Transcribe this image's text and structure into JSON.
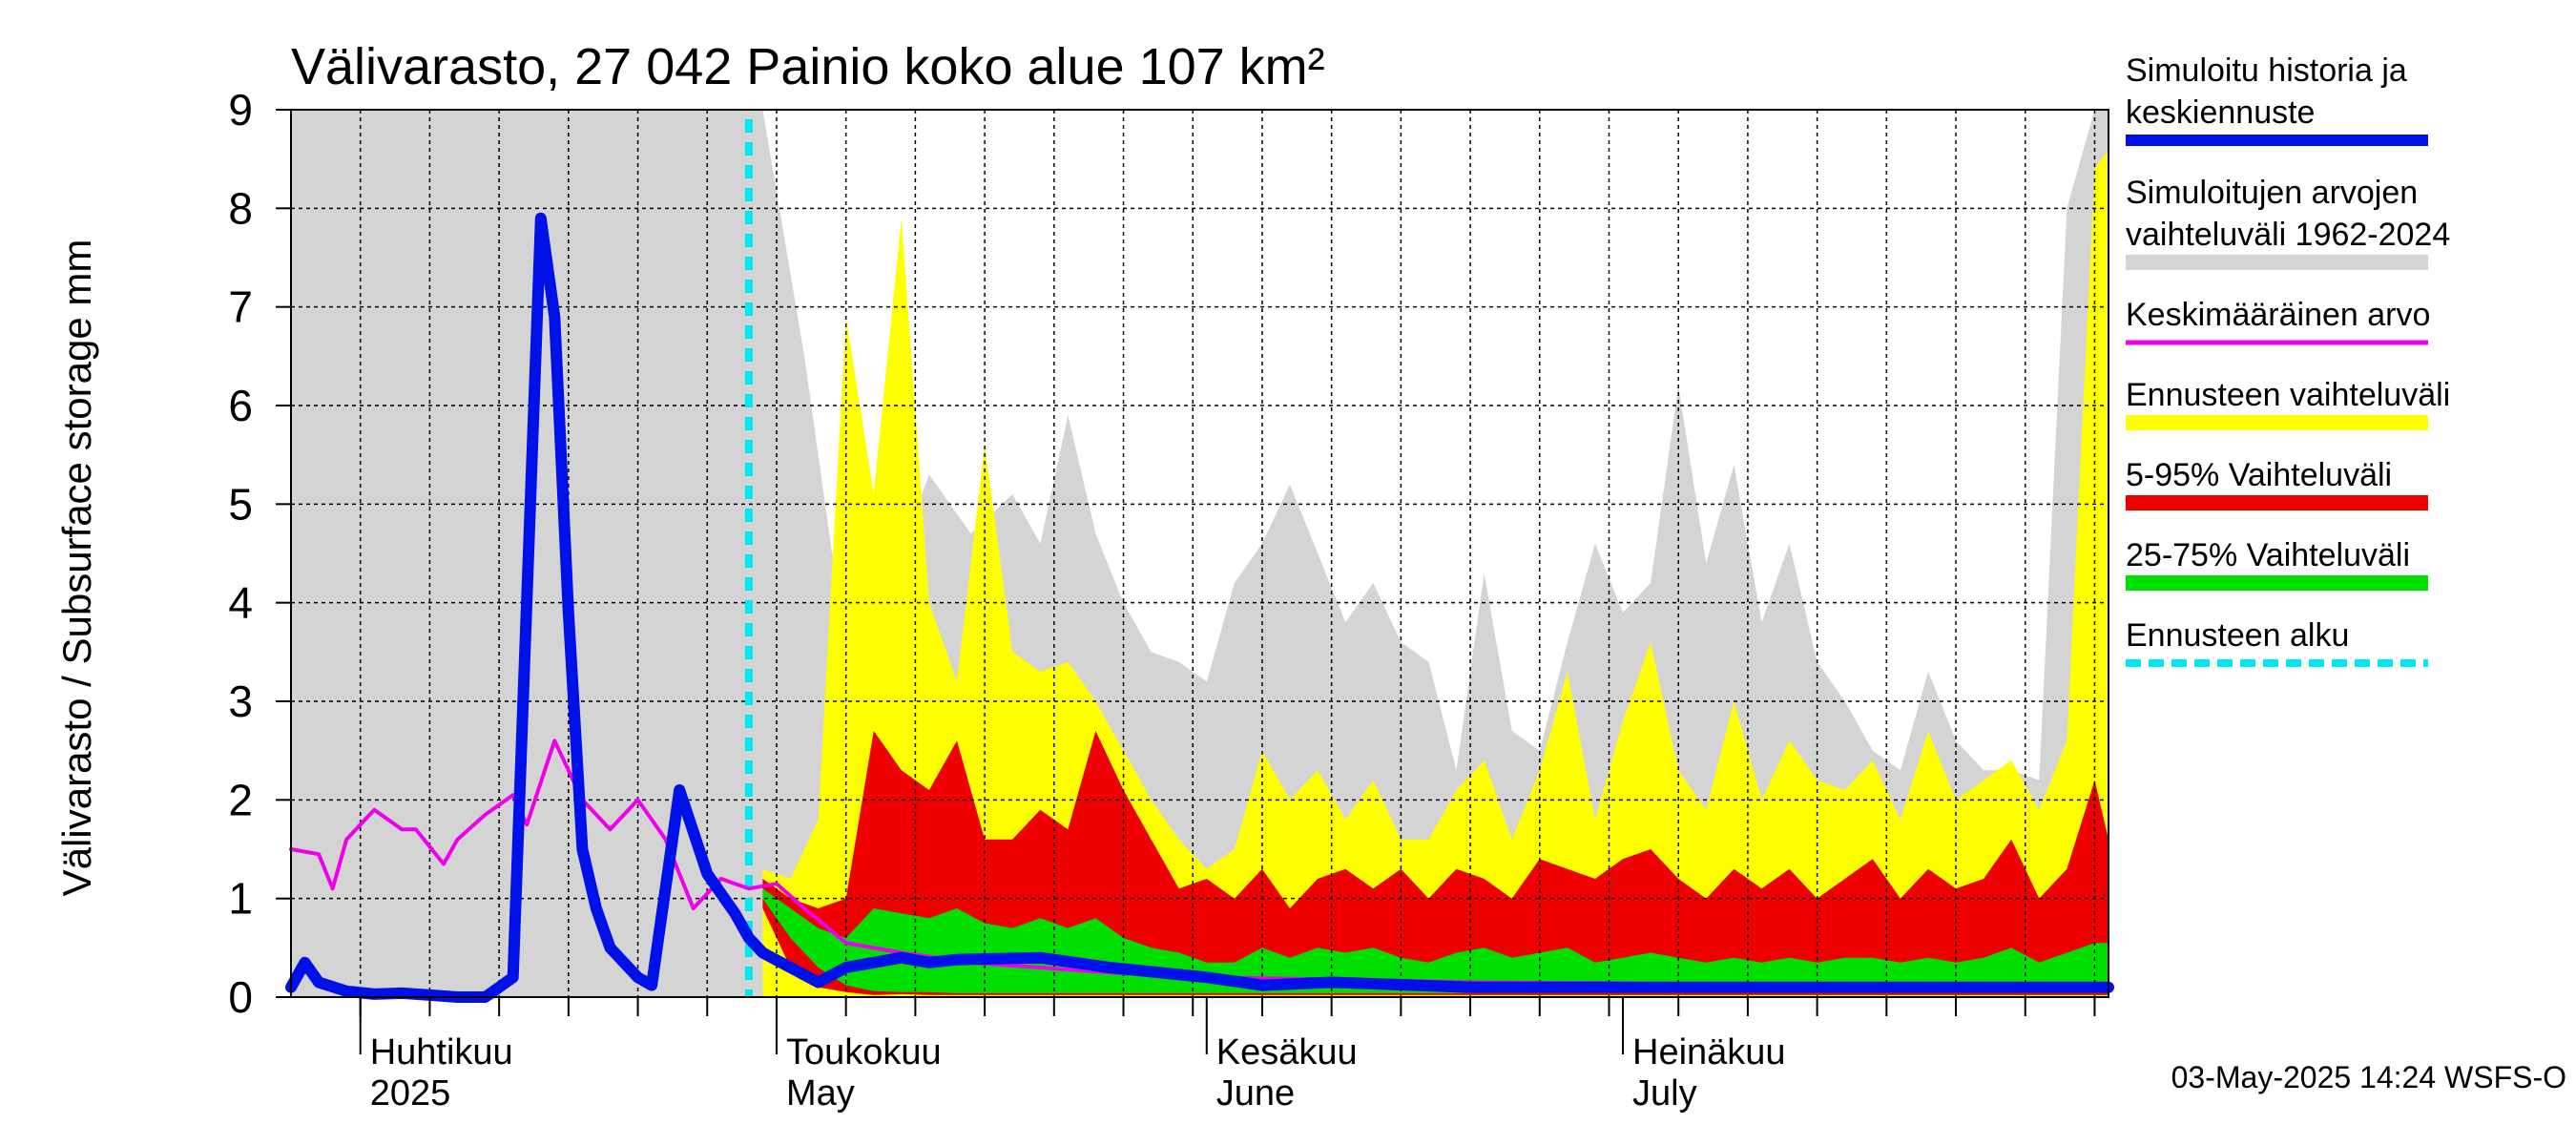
{
  "chart_data": {
    "type": "area",
    "title": "Välivarasto, 27 042 Painio koko alue 107 km²",
    "ylabel": "Välivarasto / Subsurface storage  mm",
    "ylim": [
      0,
      9
    ],
    "yticks": [
      0,
      1,
      2,
      3,
      4,
      5,
      6,
      7,
      8,
      9
    ],
    "xlim": [
      "2025-03-27",
      "2025-08-05"
    ],
    "grid": true,
    "legend_position": "right",
    "month_labels": [
      {
        "line1": "Huhtikuu",
        "line2": "2025",
        "date": "2025-04-01"
      },
      {
        "line1": "Toukokuu",
        "line2": "May",
        "date": "2025-05-01"
      },
      {
        "line1": "Kesäkuu",
        "line2": "June",
        "date": "2025-06-01"
      },
      {
        "line1": "Heinäkuu",
        "line2": "July",
        "date": "2025-07-01"
      }
    ],
    "forecast_start": "2025-04-29",
    "timestamp": "03-May-2025 14:24 WSFS-O",
    "legend": [
      {
        "label_lines": [
          "Simuloitu historia ja",
          "keskiennuste"
        ],
        "color": "#0010e8",
        "style": "thick"
      },
      {
        "label_lines": [
          "Simuloitujen arvojen",
          "vaihteluväli 1962-2024"
        ],
        "color": "#d4d4d4",
        "style": "band"
      },
      {
        "label_lines": [
          "Keskimääräinen arvo"
        ],
        "color": "#ee00ee",
        "style": "thin"
      },
      {
        "label_lines": [
          "Ennusteen vaihteluväli"
        ],
        "color": "#ffff00",
        "style": "band"
      },
      {
        "label_lines": [
          "5-95% Vaihteluväli"
        ],
        "color": "#ee0000",
        "style": "band"
      },
      {
        "label_lines": [
          "25-75% Vaihteluväli"
        ],
        "color": "#00e000",
        "style": "band"
      },
      {
        "label_lines": [
          "Ennusteen alku"
        ],
        "color": "#00e8f0",
        "style": "dashed"
      }
    ],
    "series": [
      {
        "name": "Simuloitujen arvojen vaihteluväli 1962-2024",
        "color": "#d4d4d4",
        "x": [
          "2025-03-27",
          "2025-04-30",
          "2025-05-03",
          "2025-05-05",
          "2025-05-08",
          "2025-05-12",
          "2025-05-15",
          "2025-05-18",
          "2025-05-20",
          "2025-05-22",
          "2025-05-24",
          "2025-05-26",
          "2025-05-28",
          "2025-05-30",
          "2025-06-01",
          "2025-06-03",
          "2025-06-05",
          "2025-06-07",
          "2025-06-09",
          "2025-06-11",
          "2025-06-13",
          "2025-06-15",
          "2025-06-17",
          "2025-06-19",
          "2025-06-21",
          "2025-06-23",
          "2025-06-25",
          "2025-06-27",
          "2025-06-29",
          "2025-07-01",
          "2025-07-03",
          "2025-07-05",
          "2025-07-07",
          "2025-07-09",
          "2025-07-11",
          "2025-07-13",
          "2025-07-15",
          "2025-07-17",
          "2025-07-19",
          "2025-07-21",
          "2025-07-23",
          "2025-07-25",
          "2025-07-27",
          "2025-07-29",
          "2025-07-31",
          "2025-08-02",
          "2025-08-04",
          "2025-08-05"
        ],
        "lower": [
          0,
          0,
          0,
          0,
          0,
          0,
          0,
          0,
          0,
          0,
          0,
          0,
          0,
          0,
          0,
          0,
          0,
          0,
          0,
          0,
          0,
          0,
          0,
          0,
          0,
          0,
          0,
          0,
          0,
          0,
          0,
          0,
          0,
          0,
          0,
          0,
          0,
          0,
          0,
          0,
          0,
          0,
          0,
          0,
          0,
          0,
          0,
          0
        ],
        "upper": [
          9,
          9,
          6.5,
          4.5,
          3.8,
          5.3,
          4.7,
          5.1,
          4.6,
          5.9,
          4.7,
          4.0,
          3.5,
          3.4,
          3.2,
          4.2,
          4.6,
          5.2,
          4.5,
          3.8,
          4.2,
          3.6,
          3.4,
          2.3,
          4.3,
          2.7,
          2.5,
          3.6,
          4.6,
          3.9,
          4.2,
          6.2,
          4.4,
          5.4,
          3.8,
          4.6,
          3.4,
          3.0,
          2.5,
          2.3,
          3.3,
          2.6,
          2.3,
          2.3,
          2.2,
          8.0,
          9,
          9
        ]
      },
      {
        "name": "Ennusteen vaihteluväli",
        "color": "#ffff00",
        "x": [
          "2025-04-30",
          "2025-05-02",
          "2025-05-04",
          "2025-05-06",
          "2025-05-08",
          "2025-05-10",
          "2025-05-12",
          "2025-05-14",
          "2025-05-16",
          "2025-05-18",
          "2025-05-20",
          "2025-05-22",
          "2025-05-24",
          "2025-05-26",
          "2025-05-28",
          "2025-05-30",
          "2025-06-01",
          "2025-06-03",
          "2025-06-05",
          "2025-06-07",
          "2025-06-09",
          "2025-06-11",
          "2025-06-13",
          "2025-06-15",
          "2025-06-17",
          "2025-06-19",
          "2025-06-21",
          "2025-06-23",
          "2025-06-25",
          "2025-06-27",
          "2025-06-29",
          "2025-07-01",
          "2025-07-03",
          "2025-07-05",
          "2025-07-07",
          "2025-07-09",
          "2025-07-11",
          "2025-07-13",
          "2025-07-15",
          "2025-07-17",
          "2025-07-19",
          "2025-07-21",
          "2025-07-23",
          "2025-07-25",
          "2025-07-27",
          "2025-07-29",
          "2025-07-31",
          "2025-08-02",
          "2025-08-04",
          "2025-08-05"
        ],
        "lower": [
          0,
          0,
          0,
          0,
          0,
          0,
          0,
          0,
          0,
          0,
          0,
          0,
          0,
          0,
          0,
          0,
          0,
          0,
          0,
          0,
          0,
          0,
          0,
          0,
          0,
          0,
          0,
          0,
          0,
          0,
          0,
          0,
          0,
          0,
          0,
          0,
          0,
          0,
          0,
          0,
          0,
          0,
          0,
          0,
          0,
          0,
          0,
          0,
          0,
          0
        ],
        "upper": [
          1.3,
          1.2,
          1.8,
          6.9,
          5.1,
          7.9,
          4.0,
          3.2,
          5.6,
          3.5,
          3.3,
          3.4,
          3.0,
          2.5,
          2.0,
          1.6,
          1.3,
          1.5,
          2.5,
          2.0,
          2.3,
          1.8,
          2.2,
          1.6,
          1.6,
          2.1,
          2.4,
          1.6,
          2.3,
          3.3,
          1.8,
          2.8,
          3.6,
          2.3,
          1.9,
          3.0,
          2.0,
          2.6,
          2.2,
          2.1,
          2.4,
          1.8,
          2.7,
          2.0,
          2.2,
          2.4,
          1.9,
          2.6,
          8.4,
          8.6
        ]
      },
      {
        "name": "5-95% Vaihteluväli",
        "color": "#ee0000",
        "x": [
          "2025-04-30",
          "2025-05-02",
          "2025-05-04",
          "2025-05-06",
          "2025-05-08",
          "2025-05-10",
          "2025-05-12",
          "2025-05-14",
          "2025-05-16",
          "2025-05-18",
          "2025-05-20",
          "2025-05-22",
          "2025-05-24",
          "2025-05-26",
          "2025-05-28",
          "2025-05-30",
          "2025-06-01",
          "2025-06-03",
          "2025-06-05",
          "2025-06-07",
          "2025-06-09",
          "2025-06-11",
          "2025-06-13",
          "2025-06-15",
          "2025-06-17",
          "2025-06-19",
          "2025-06-21",
          "2025-06-23",
          "2025-06-25",
          "2025-06-27",
          "2025-06-29",
          "2025-07-01",
          "2025-07-03",
          "2025-07-05",
          "2025-07-07",
          "2025-07-09",
          "2025-07-11",
          "2025-07-13",
          "2025-07-15",
          "2025-07-17",
          "2025-07-19",
          "2025-07-21",
          "2025-07-23",
          "2025-07-25",
          "2025-07-27",
          "2025-07-29",
          "2025-07-31",
          "2025-08-02",
          "2025-08-04",
          "2025-08-05"
        ],
        "lower": [
          0.9,
          0.3,
          0.1,
          0.05,
          0.02,
          0.03,
          0.02,
          0.02,
          0.02,
          0.02,
          0.02,
          0.02,
          0.02,
          0.02,
          0.02,
          0.02,
          0.02,
          0.02,
          0.02,
          0.02,
          0.02,
          0.02,
          0.02,
          0.02,
          0.02,
          0.02,
          0.02,
          0.02,
          0.02,
          0.02,
          0.02,
          0.02,
          0.02,
          0.02,
          0.02,
          0.02,
          0.02,
          0.02,
          0.02,
          0.02,
          0.02,
          0.02,
          0.02,
          0.02,
          0.02,
          0.02,
          0.02,
          0.02,
          0.02,
          0.02
        ],
        "upper": [
          1.2,
          1.0,
          0.9,
          1.0,
          2.7,
          2.3,
          2.1,
          2.6,
          1.6,
          1.6,
          1.9,
          1.7,
          2.7,
          2.1,
          1.6,
          1.1,
          1.2,
          1.0,
          1.3,
          0.9,
          1.2,
          1.3,
          1.1,
          1.3,
          1.0,
          1.3,
          1.2,
          1.0,
          1.4,
          1.3,
          1.2,
          1.4,
          1.5,
          1.2,
          1.0,
          1.3,
          1.1,
          1.3,
          1.0,
          1.2,
          1.4,
          1.0,
          1.3,
          1.1,
          1.2,
          1.6,
          1.0,
          1.3,
          2.2,
          1.6
        ]
      },
      {
        "name": "25-75% Vaihteluväli",
        "color": "#00e000",
        "x": [
          "2025-04-30",
          "2025-05-02",
          "2025-05-04",
          "2025-05-06",
          "2025-05-08",
          "2025-05-10",
          "2025-05-12",
          "2025-05-14",
          "2025-05-16",
          "2025-05-18",
          "2025-05-20",
          "2025-05-22",
          "2025-05-24",
          "2025-05-26",
          "2025-05-28",
          "2025-05-30",
          "2025-06-01",
          "2025-06-03",
          "2025-06-05",
          "2025-06-07",
          "2025-06-09",
          "2025-06-11",
          "2025-06-13",
          "2025-06-15",
          "2025-06-17",
          "2025-06-19",
          "2025-06-21",
          "2025-06-23",
          "2025-06-25",
          "2025-06-27",
          "2025-06-29",
          "2025-07-01",
          "2025-07-03",
          "2025-07-05",
          "2025-07-07",
          "2025-07-09",
          "2025-07-11",
          "2025-07-13",
          "2025-07-15",
          "2025-07-17",
          "2025-07-19",
          "2025-07-21",
          "2025-07-23",
          "2025-07-25",
          "2025-07-27",
          "2025-07-29",
          "2025-07-31",
          "2025-08-02",
          "2025-08-04",
          "2025-08-05"
        ],
        "lower": [
          1.0,
          0.6,
          0.3,
          0.12,
          0.06,
          0.05,
          0.05,
          0.04,
          0.04,
          0.04,
          0.04,
          0.04,
          0.04,
          0.04,
          0.04,
          0.04,
          0.04,
          0.04,
          0.04,
          0.04,
          0.04,
          0.04,
          0.04,
          0.04,
          0.04,
          0.04,
          0.04,
          0.04,
          0.04,
          0.04,
          0.04,
          0.04,
          0.04,
          0.04,
          0.04,
          0.04,
          0.04,
          0.04,
          0.04,
          0.04,
          0.04,
          0.04,
          0.04,
          0.04,
          0.04,
          0.04,
          0.04,
          0.04,
          0.04,
          0.04
        ],
        "upper": [
          1.1,
          0.9,
          0.7,
          0.6,
          0.9,
          0.85,
          0.8,
          0.9,
          0.75,
          0.7,
          0.8,
          0.7,
          0.8,
          0.6,
          0.5,
          0.45,
          0.35,
          0.35,
          0.5,
          0.4,
          0.5,
          0.45,
          0.5,
          0.4,
          0.35,
          0.45,
          0.5,
          0.4,
          0.45,
          0.5,
          0.35,
          0.4,
          0.45,
          0.4,
          0.35,
          0.4,
          0.35,
          0.4,
          0.35,
          0.4,
          0.4,
          0.35,
          0.4,
          0.35,
          0.4,
          0.5,
          0.35,
          0.45,
          0.55,
          0.55
        ]
      },
      {
        "name": "Keskimääräinen arvo",
        "color": "#ee00ee",
        "x": [
          "2025-03-27",
          "2025-03-29",
          "2025-03-30",
          "2025-03-31",
          "2025-04-02",
          "2025-04-04",
          "2025-04-05",
          "2025-04-07",
          "2025-04-08",
          "2025-04-10",
          "2025-04-12",
          "2025-04-13",
          "2025-04-15",
          "2025-04-17",
          "2025-04-19",
          "2025-04-21",
          "2025-04-22",
          "2025-04-23",
          "2025-04-25",
          "2025-04-27",
          "2025-04-29",
          "2025-05-01",
          "2025-05-03",
          "2025-05-06",
          "2025-05-10",
          "2025-05-15",
          "2025-05-20",
          "2025-05-25",
          "2025-06-01",
          "2025-06-10",
          "2025-06-20",
          "2025-07-01",
          "2025-07-10",
          "2025-07-20",
          "2025-08-05"
        ],
        "values": [
          1.5,
          1.45,
          1.1,
          1.6,
          1.9,
          1.7,
          1.7,
          1.35,
          1.6,
          1.85,
          2.05,
          1.75,
          2.6,
          2.0,
          1.7,
          2.0,
          1.8,
          1.6,
          0.9,
          1.2,
          1.1,
          1.15,
          0.9,
          0.55,
          0.45,
          0.35,
          0.3,
          0.25,
          0.2,
          0.18,
          0.15,
          0.14,
          0.12,
          0.12,
          0.12
        ]
      },
      {
        "name": "Simuloitu historia ja keskiennuste",
        "color": "#0010e8",
        "x": [
          "2025-03-27",
          "2025-03-28",
          "2025-03-29",
          "2025-03-31",
          "2025-04-02",
          "2025-04-04",
          "2025-04-06",
          "2025-04-08",
          "2025-04-10",
          "2025-04-12",
          "2025-04-14",
          "2025-04-15",
          "2025-04-16",
          "2025-04-17",
          "2025-04-18",
          "2025-04-19",
          "2025-04-20",
          "2025-04-21",
          "2025-04-22",
          "2025-04-24",
          "2025-04-26",
          "2025-04-28",
          "2025-04-29",
          "2025-04-30",
          "2025-05-02",
          "2025-05-04",
          "2025-05-06",
          "2025-05-08",
          "2025-05-10",
          "2025-05-12",
          "2025-05-14",
          "2025-05-20",
          "2025-05-25",
          "2025-06-01",
          "2025-06-05",
          "2025-06-10",
          "2025-06-20",
          "2025-07-01",
          "2025-07-10",
          "2025-07-20",
          "2025-08-05"
        ],
        "values": [
          0.1,
          0.35,
          0.15,
          0.06,
          0.03,
          0.04,
          0.02,
          0.0,
          0.0,
          0.2,
          7.9,
          6.9,
          3.9,
          1.5,
          0.9,
          0.5,
          0.35,
          0.2,
          0.12,
          2.1,
          1.25,
          0.85,
          0.6,
          0.45,
          0.3,
          0.15,
          0.3,
          0.35,
          0.4,
          0.35,
          0.38,
          0.4,
          0.3,
          0.2,
          0.12,
          0.15,
          0.1,
          0.1,
          0.1,
          0.1,
          0.1
        ]
      }
    ]
  }
}
